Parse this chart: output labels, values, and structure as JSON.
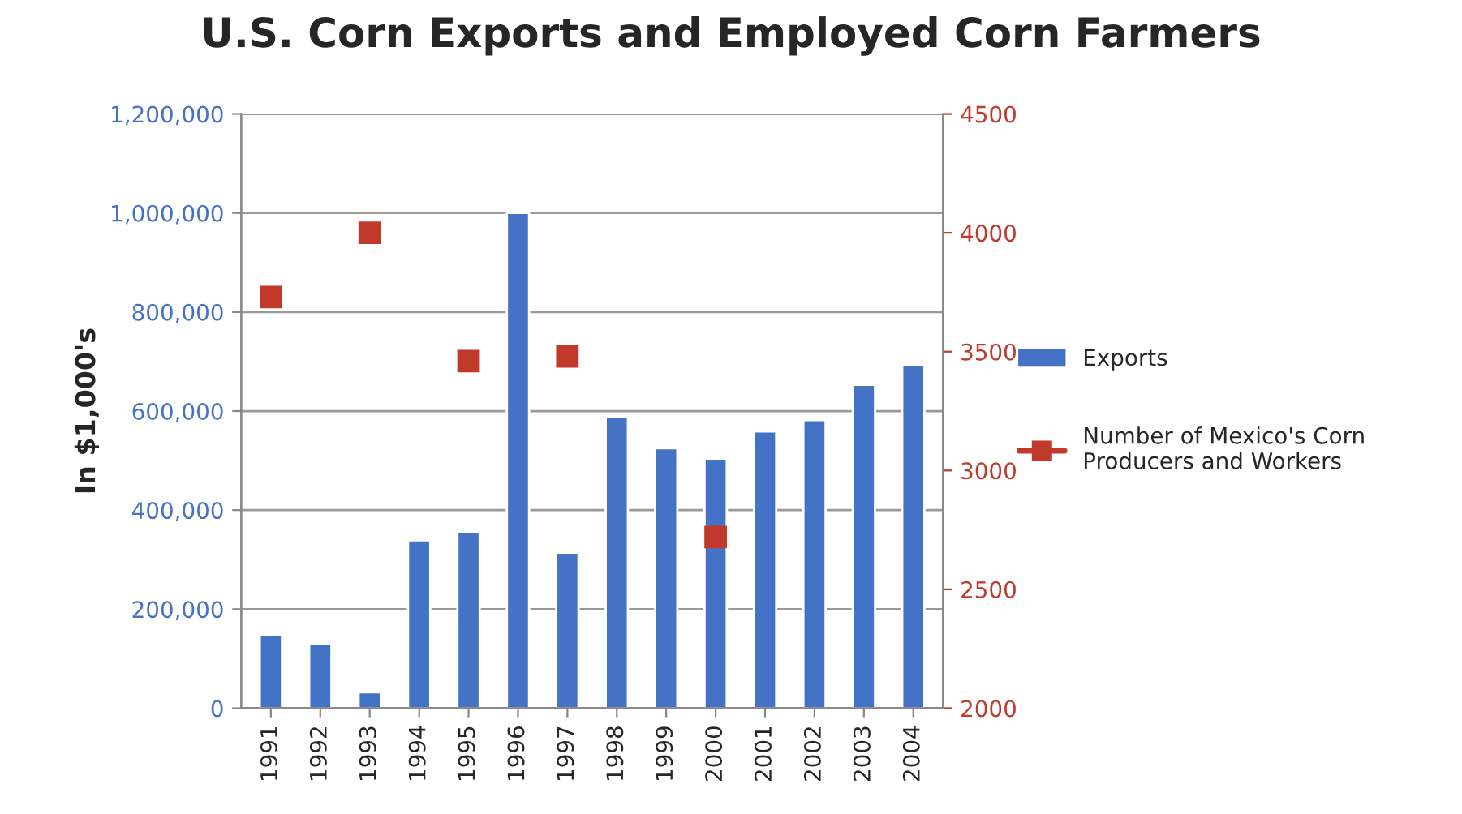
{
  "chart_data": {
    "type": "bar",
    "title": "U.S. Corn Exports and Employed Corn Farmers",
    "ylabel": "In $1,000's",
    "categories": [
      "1991",
      "1992",
      "1993",
      "1994",
      "1995",
      "1996",
      "1997",
      "1998",
      "1999",
      "2000",
      "2001",
      "2002",
      "2003",
      "2004"
    ],
    "series": [
      {
        "name": "Exports",
        "color": "#4472c4",
        "values": [
          147000,
          129000,
          32000,
          339000,
          355000,
          1000000,
          314000,
          588000,
          525000,
          504000,
          559000,
          582000,
          653000,
          694000
        ]
      },
      {
        "name": "Number of Mexico's Corn Producers and Workers",
        "type": "scatter",
        "axis": "y2",
        "color": "#c0392b",
        "marker": "square",
        "values": [
          3730,
          null,
          4000,
          null,
          3460,
          null,
          3480,
          null,
          null,
          2720,
          null,
          null,
          null,
          null
        ]
      }
    ],
    "ylim": [
      0,
      1200000
    ],
    "yticks": [
      {
        "value": 0,
        "label": "0"
      },
      {
        "value": 200000,
        "label": "200,000"
      },
      {
        "value": 400000,
        "label": "400,000"
      },
      {
        "value": 600000,
        "label": "600,000"
      },
      {
        "value": 800000,
        "label": "800,000"
      },
      {
        "value": 1000000,
        "label": "1,000,000"
      },
      {
        "value": 1200000,
        "label": "1,200,000"
      }
    ],
    "y2lim": [
      2000,
      4500
    ],
    "y2ticks": [
      2000,
      2500,
      3000,
      3500,
      4000,
      4500
    ],
    "grid": "y",
    "legend": "right"
  }
}
